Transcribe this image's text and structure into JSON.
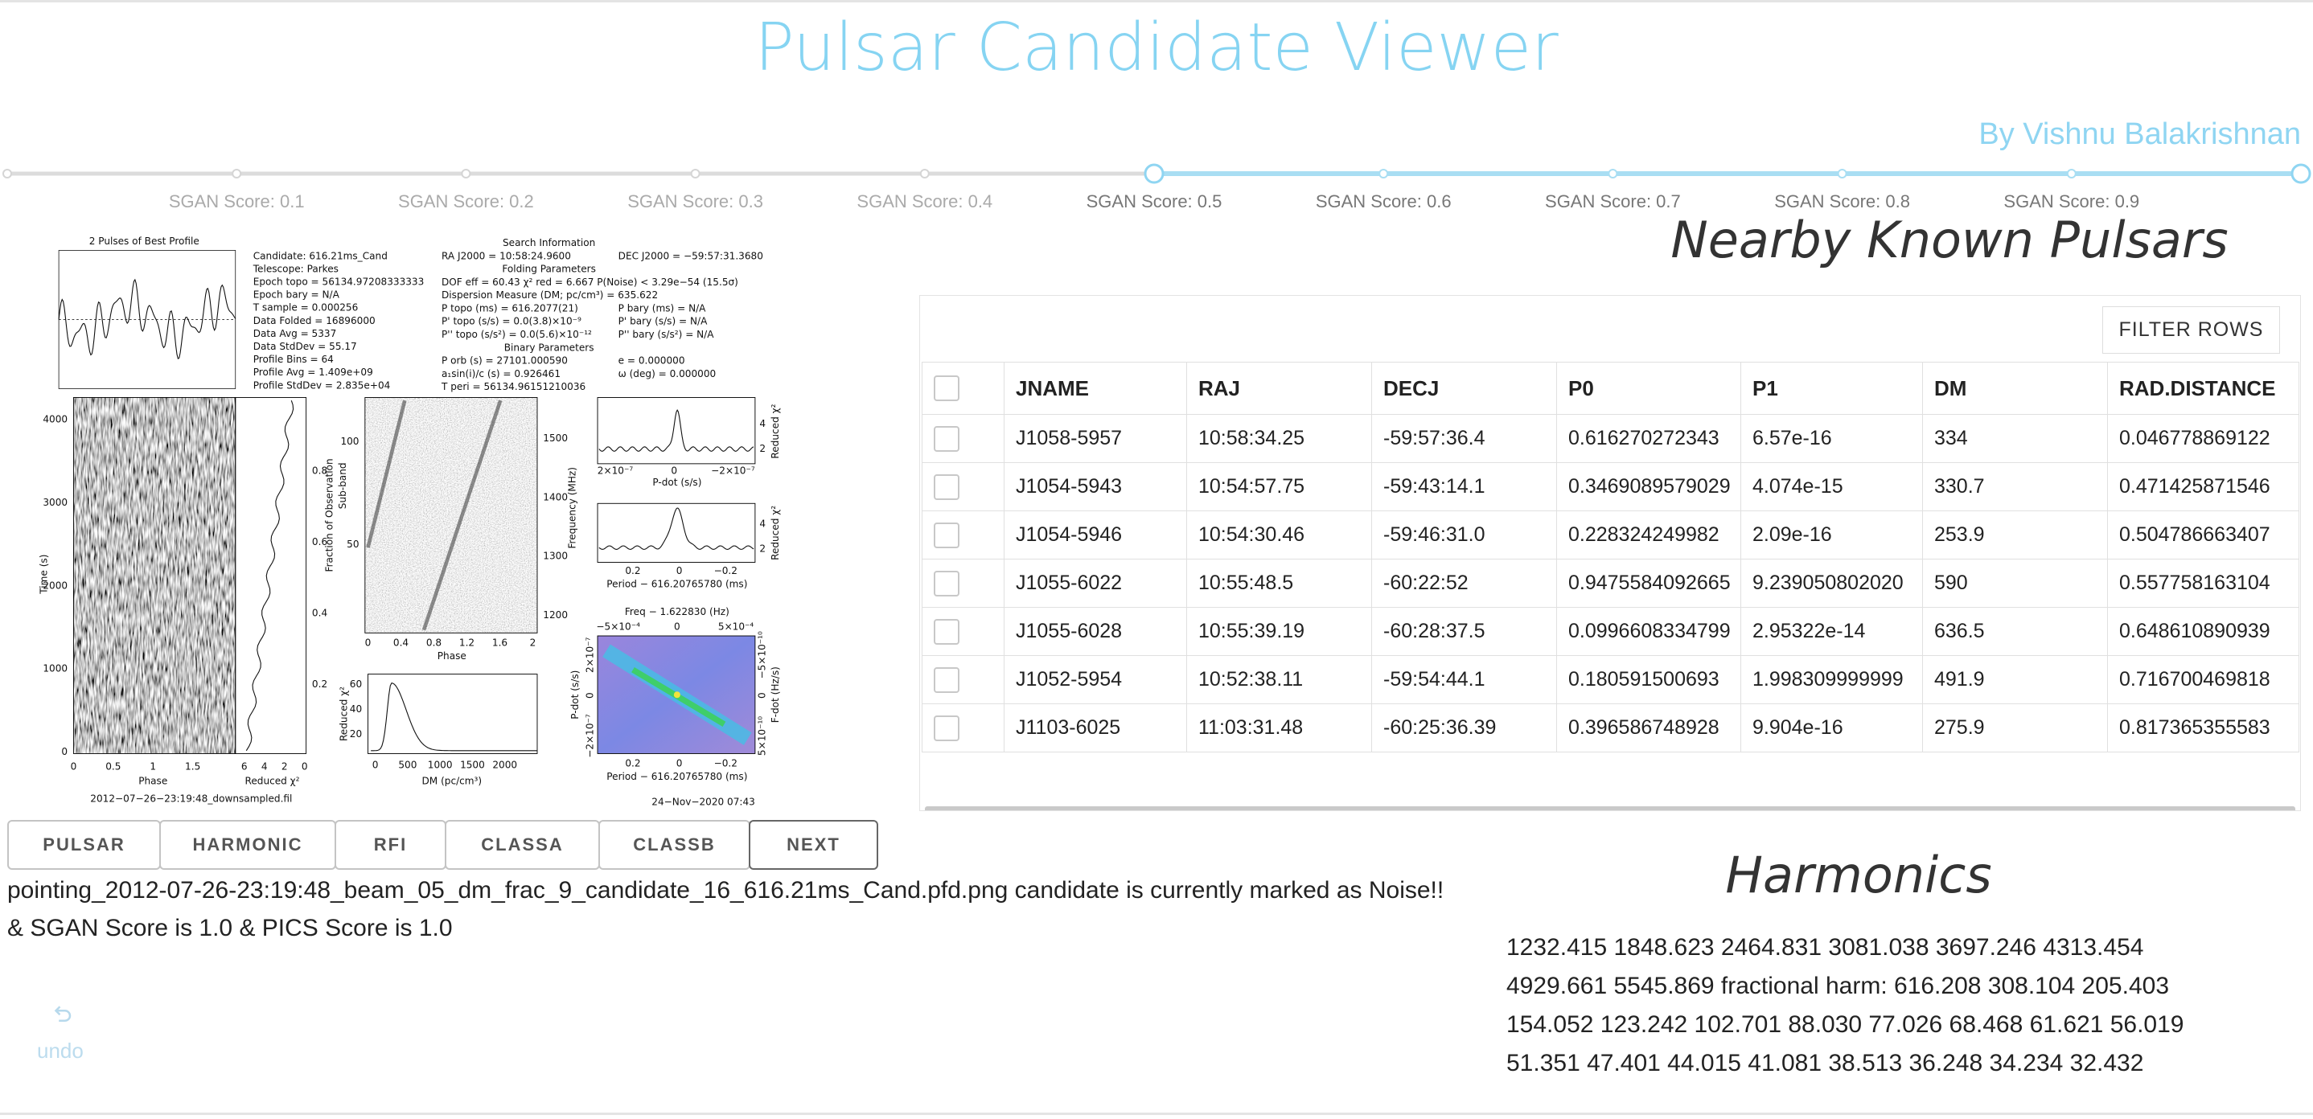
{
  "header": {
    "title": "Pulsar Candidate Viewer",
    "byline": "By Vishnu Balakrishnan"
  },
  "slider": {
    "range": [
      0,
      1
    ],
    "value": [
      0.5,
      1
    ],
    "marks": [
      {
        "value": 0.1,
        "label": "SGAN Score: 0.1"
      },
      {
        "value": 0.2,
        "label": "SGAN Score: 0.2"
      },
      {
        "value": 0.3,
        "label": "SGAN Score: 0.3"
      },
      {
        "value": 0.4,
        "label": "SGAN Score: 0.4"
      },
      {
        "value": 0.5,
        "label": "SGAN Score: 0.5"
      },
      {
        "value": 0.6,
        "label": "SGAN Score: 0.6"
      },
      {
        "value": 0.7,
        "label": "SGAN Score: 0.7"
      },
      {
        "value": 0.8,
        "label": "SGAN Score: 0.8"
      },
      {
        "value": 0.9,
        "label": "SGAN Score: 0.9"
      }
    ]
  },
  "candidate_plot": {
    "title": "2 Pulses of Best Profile",
    "info": [
      "Candidate:  616.21ms_Cand",
      "Telescope:  Parkes",
      "Epoch topo  =  56134.97208333333",
      "Epoch bary  =  N/A",
      "T sample  =  0.000256",
      "Data Folded  =  16896000",
      "Data Avg  =  5337",
      "Data StdDev  =  55.17",
      "Profile Bins  =  64",
      "Profile Avg  =  1.409e+09",
      "Profile StdDev  =  2.835e+04"
    ],
    "search": {
      "title": "Search Information",
      "rows": [
        {
          "left": "RA J2000 = 10:58:24.9600",
          "right": "DEC J2000 = −59:57:31.3680"
        },
        {
          "heading": "Folding Parameters"
        },
        {
          "left": "DOF eff = 60.43   χ² red = 6.667   P(Noise) < 3.29e−54   (15.5σ)"
        },
        {
          "left": "Dispersion Measure (DM; pc/cm³) = 635.622"
        },
        {
          "left": "P topo (ms) = 616.2077(21)",
          "right": "P bary (ms) = N/A"
        },
        {
          "left": "P' topo (s/s) = 0.0(3.8)×10⁻⁹",
          "right": "P' bary (s/s) = N/A"
        },
        {
          "left": "P'' topo (s/s²) = 0.0(5.6)×10⁻¹²",
          "right": "P'' bary (s/s²) = N/A"
        },
        {
          "heading": "Binary Parameters"
        },
        {
          "left": "P orb (s) = 27101.000590",
          "right": "e = 0.000000"
        },
        {
          "left": "a₁sin(i)/c (s) = 0.926461",
          "right": "ω (deg) = 0.000000"
        },
        {
          "left": "T peri = 56134.96151210036"
        }
      ]
    },
    "panels": {
      "time_phase": {
        "y_label": "Time (s)",
        "y_ticks": [
          "0",
          "1000",
          "2000",
          "3000",
          "4000"
        ],
        "x_label": "Phase",
        "x_ticks": [
          "0",
          "0.5",
          "1",
          "1.5"
        ]
      },
      "time_chi": {
        "x_label": "Reduced χ²",
        "x_ticks": [
          "6",
          "4",
          "2",
          "0"
        ],
        "y2_label": "Fraction of Observation",
        "y2_ticks": [
          "0.2",
          "0.4",
          "0.6",
          "0.8"
        ]
      },
      "subbands": {
        "x_label": "Phase",
        "x_ticks": [
          "0",
          "0.4",
          "0.8",
          "1.2",
          "1.6",
          "2"
        ],
        "y_label": "Sub-band",
        "y_ticks": [
          "50",
          "100"
        ],
        "y2_label": "Frequency (MHz)",
        "y2_ticks": [
          "1200",
          "1300",
          "1400",
          "1500"
        ]
      },
      "dm": {
        "x_label": "DM (pc/cm³)",
        "x_ticks": [
          "0",
          "500",
          "1000",
          "1500",
          "2000"
        ],
        "y_label": "Reduced χ²",
        "y_ticks": [
          "20",
          "40",
          "60"
        ]
      },
      "pdot": {
        "x_label": "P-dot (s/s)",
        "x_ticks": [
          "2×10⁻⁷",
          "0",
          "−2×10⁻⁷"
        ],
        "y2_label": "Reduced χ²",
        "y2_ticks": [
          "2",
          "4"
        ]
      },
      "period": {
        "x_label": "Period − 616.20765780 (ms)",
        "x_ticks": [
          "0.2",
          "0",
          "−0.2"
        ],
        "y2_label": "Reduced χ²",
        "y2_ticks": [
          "2",
          "4"
        ]
      },
      "ppdot": {
        "title": "Freq − 1.622830 (Hz)",
        "top_ticks": [
          "−5×10⁻⁴",
          "0",
          "5×10⁻⁴"
        ],
        "x_label": "Period − 616.20765780 (ms)",
        "x_ticks": [
          "0.2",
          "0",
          "−0.2"
        ],
        "y_label": "P-dot (s/s)",
        "y_ticks": [
          "2×10⁻⁷",
          "0",
          "−2×10⁻⁷"
        ],
        "y2_label": "F-dot (Hz/s)",
        "y2_ticks": [
          "−5×10⁻¹⁰",
          "0",
          "5×10⁻¹⁰"
        ]
      }
    },
    "filename": "2012−07−26−23:19:48_downsampled.fil",
    "date": "24−Nov−2020 07:43"
  },
  "buttons": [
    "PULSAR",
    "HARMONIC",
    "RFI",
    "CLASSA",
    "CLASSB",
    "NEXT"
  ],
  "status": {
    "lines": [
      "pointing_2012-07-26-23:19:48_beam_05_dm_frac_9_candidate_16_616.21ms_Cand.pfd.png candidate is currently marked as Noise!!",
      "& SGAN Score is 1.0 & PICS Score is 1.0"
    ]
  },
  "undo": {
    "label": "undo"
  },
  "known_pulsars": {
    "title": "Nearby Known Pulsars",
    "filter_button": "FILTER ROWS",
    "table": {
      "columns": [
        "JNAME",
        "RAJ",
        "DECJ",
        "P0",
        "P1",
        "DM",
        "RAD.DISTANCE"
      ],
      "rows": [
        [
          "J1058-5957",
          "10:58:34.25",
          "-59:57:36.4",
          "0.616270272343",
          "6.57e-16",
          "334",
          "0.046778869122"
        ],
        [
          "J1054-5943",
          "10:54:57.75",
          "-59:43:14.1",
          "0.3469089579029",
          "4.074e-15",
          "330.7",
          "0.471425871546"
        ],
        [
          "J1054-5946",
          "10:54:30.46",
          "-59:46:31.0",
          "0.228324249982",
          "2.09e-16",
          "253.9",
          "0.504786663407"
        ],
        [
          "J1055-6022",
          "10:55:48.5",
          "-60:22:52",
          "0.9475584092665",
          "9.239050802020",
          "590",
          "0.557758163104"
        ],
        [
          "J1055-6028",
          "10:55:39.19",
          "-60:28:37.5",
          "0.0996608334799",
          "2.95322e-14",
          "636.5",
          "0.648610890939"
        ],
        [
          "J1052-5954",
          "10:52:38.11",
          "-59:54:44.1",
          "0.180591500693",
          "1.998309999999",
          "491.9",
          "0.716700469818"
        ],
        [
          "J1103-6025",
          "11:03:31.48",
          "-60:25:36.39",
          "0.396586748928",
          "9.904e-16",
          "275.9",
          "0.817365355583"
        ]
      ]
    }
  },
  "harmonics": {
    "title": "Harmonics",
    "lines": [
      "1232.415 1848.623 2464.831 3081.038 3697.246 4313.454",
      "4929.661 5545.869 fractional harm: 616.208 308.104 205.403",
      "154.052 123.242 102.701 88.030 77.026 68.468 61.621 56.019",
      "51.351 47.401 44.015 41.081 38.513 36.248 34.234 32.432"
    ]
  }
}
